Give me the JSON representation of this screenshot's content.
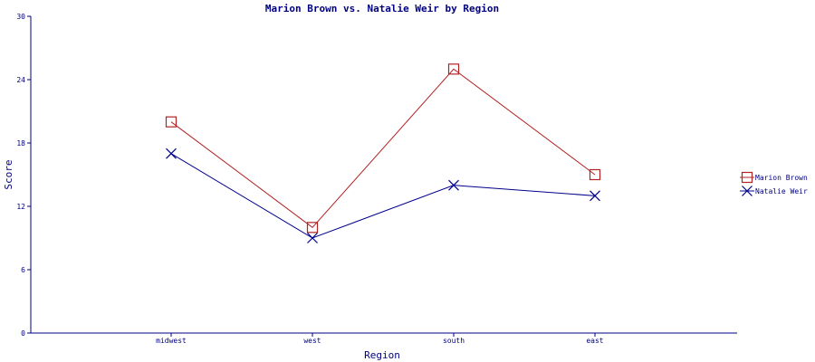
{
  "chart_data": {
    "type": "line",
    "title": "Marion Brown vs. Natalie Weir by Region",
    "xlabel": "Region",
    "ylabel": "Score",
    "categories": [
      "midwest",
      "west",
      "south",
      "east"
    ],
    "ylim": [
      0,
      30
    ],
    "yticks": [
      0,
      6,
      12,
      18,
      24,
      30
    ],
    "grid": false,
    "legend_position": "right",
    "series": [
      {
        "name": "Marion Brown",
        "values": [
          20,
          10,
          25,
          15
        ],
        "color": "#b22222",
        "marker": "square"
      },
      {
        "name": "Natalie Weir",
        "values": [
          17,
          9,
          14,
          13
        ],
        "color": "#00008b",
        "marker": "x"
      }
    ]
  },
  "colors": {
    "axis": "#000080",
    "text": "#000080"
  }
}
